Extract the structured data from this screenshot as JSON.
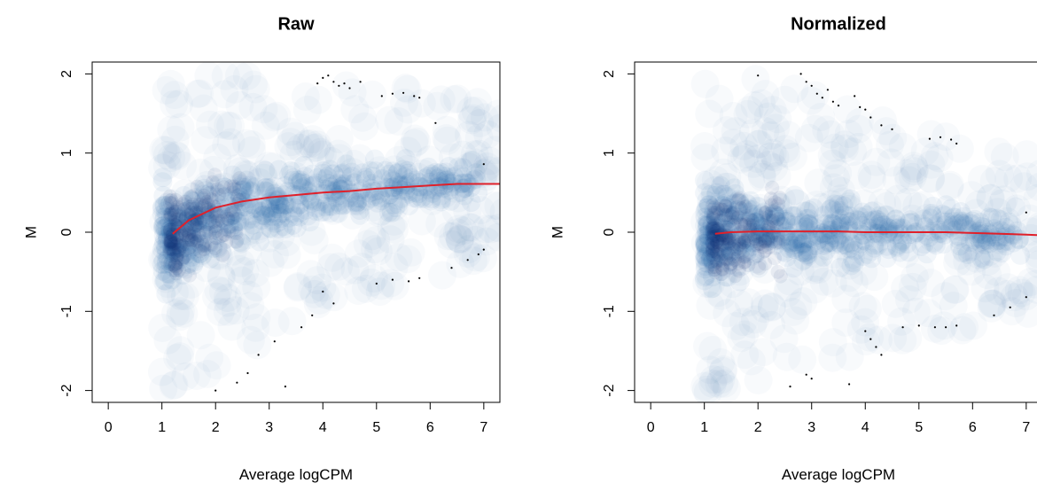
{
  "chart_data": [
    {
      "type": "scatter",
      "title": "Raw",
      "xlabel": "Average logCPM",
      "ylabel": "M",
      "xlim": [
        -0.3,
        7.3
      ],
      "ylim": [
        -2.15,
        2.15
      ],
      "xticks": [
        "0",
        "1",
        "2",
        "3",
        "4",
        "5",
        "6",
        "7"
      ],
      "yticks": [
        "-2",
        "-1",
        "0",
        "1",
        "2"
      ],
      "grid": false,
      "rendering": "smoothed density scatter (blue) with sparse outlier points",
      "density_color": "#08519c",
      "density_ridge": {
        "x": [
          1.0,
          1.3,
          1.6,
          2.0,
          2.5,
          3.0,
          3.5,
          4.0,
          4.5,
          5.0,
          5.5,
          6.0,
          6.5
        ],
        "m": [
          -0.1,
          -0.05,
          0.05,
          0.2,
          0.3,
          0.35,
          0.42,
          0.45,
          0.5,
          0.55,
          0.58,
          0.6,
          0.62
        ]
      },
      "trend_line": {
        "color": "#e0202a",
        "x": [
          1.2,
          1.5,
          2.0,
          2.5,
          3.0,
          3.5,
          4.0,
          4.5,
          5.0,
          5.5,
          6.0,
          6.5,
          7.0,
          7.3
        ],
        "y": [
          -0.02,
          0.15,
          0.31,
          0.39,
          0.44,
          0.47,
          0.5,
          0.52,
          0.55,
          0.57,
          0.59,
          0.61,
          0.61,
          0.61
        ]
      },
      "outliers": {
        "x": [
          4.0,
          4.1,
          4.2,
          4.3,
          4.4,
          4.5,
          4.7,
          3.9,
          5.1,
          5.3,
          5.5,
          5.7,
          5.8,
          6.1,
          7.0,
          4.0,
          4.2,
          3.8,
          3.6,
          3.1,
          2.8,
          2.6,
          2.4,
          2.0,
          3.3,
          5.0,
          5.3,
          5.6,
          5.8,
          6.4,
          6.7,
          7.0,
          6.9
        ],
        "y": [
          1.95,
          1.98,
          1.9,
          1.85,
          1.88,
          1.82,
          1.9,
          1.88,
          1.72,
          1.75,
          1.76,
          1.72,
          1.7,
          1.38,
          0.86,
          -0.75,
          -0.9,
          -1.05,
          -1.2,
          -1.38,
          -1.55,
          -1.78,
          -1.9,
          -2.0,
          -1.95,
          -0.65,
          -0.6,
          -0.62,
          -0.58,
          -0.45,
          -0.35,
          -0.22,
          -0.28
        ]
      }
    },
    {
      "type": "scatter",
      "title": "Normalized",
      "xlabel": "Average logCPM",
      "ylabel": "M",
      "xlim": [
        -0.3,
        7.3
      ],
      "ylim": [
        -2.15,
        2.15
      ],
      "xticks": [
        "0",
        "1",
        "2",
        "3",
        "4",
        "5",
        "6",
        "7"
      ],
      "yticks": [
        "-2",
        "-1",
        "0",
        "1",
        "2"
      ],
      "grid": false,
      "rendering": "smoothed density scatter (blue) with sparse outlier points",
      "density_color": "#08519c",
      "density_ridge": {
        "x": [
          1.0,
          1.3,
          1.6,
          2.0,
          2.5,
          3.0,
          3.5,
          4.0,
          4.5,
          5.0,
          5.5,
          6.0,
          6.5
        ],
        "m": [
          -0.1,
          -0.05,
          0.0,
          0.02,
          0.02,
          0.01,
          0.0,
          0.0,
          0.0,
          0.0,
          0.0,
          -0.02,
          -0.03
        ]
      },
      "trend_line": {
        "color": "#e0202a",
        "x": [
          1.2,
          1.5,
          2.0,
          2.5,
          3.0,
          3.5,
          4.0,
          4.5,
          5.0,
          5.5,
          6.0,
          6.5,
          7.0,
          7.3
        ],
        "y": [
          -0.02,
          0.0,
          0.01,
          0.01,
          0.01,
          0.01,
          0.0,
          0.0,
          0.0,
          0.0,
          -0.01,
          -0.02,
          -0.03,
          -0.04
        ]
      },
      "outliers": {
        "x": [
          2.0,
          2.8,
          2.9,
          3.0,
          3.1,
          3.2,
          3.3,
          3.4,
          3.5,
          3.8,
          3.9,
          4.0,
          4.1,
          4.3,
          4.5,
          5.2,
          5.4,
          5.6,
          5.7,
          7.0,
          4.0,
          4.1,
          4.2,
          4.3,
          3.7,
          2.6,
          2.9,
          3.0,
          4.7,
          5.0,
          5.3,
          5.5,
          5.7,
          6.4,
          6.7,
          7.0
        ],
        "y": [
          1.98,
          2.0,
          1.9,
          1.85,
          1.75,
          1.7,
          1.8,
          1.65,
          1.6,
          1.72,
          1.58,
          1.55,
          1.45,
          1.35,
          1.3,
          1.18,
          1.2,
          1.17,
          1.12,
          0.25,
          -1.25,
          -1.35,
          -1.45,
          -1.55,
          -1.92,
          -1.95,
          -1.8,
          -1.85,
          -1.2,
          -1.18,
          -1.2,
          -1.2,
          -1.18,
          -1.05,
          -0.95,
          -0.82
        ]
      }
    }
  ]
}
